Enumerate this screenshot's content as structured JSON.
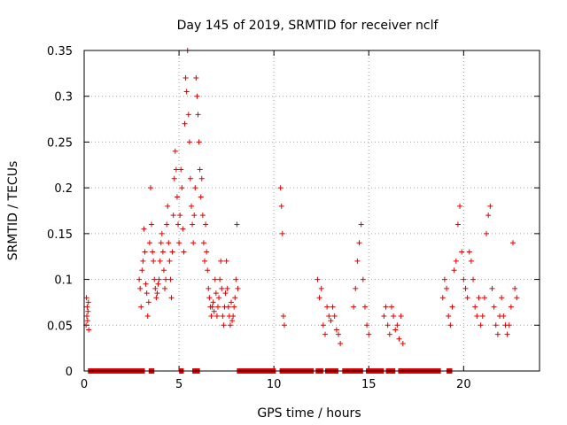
{
  "chart_data": {
    "type": "scatter",
    "title": "Day 145 of 2019, SRMTID for receiver nclf",
    "xlabel": "GPS time / hours",
    "ylabel": "SRMTID / TECUs",
    "xlim": [
      0,
      24
    ],
    "ylim": [
      0,
      0.35
    ],
    "xticks": [
      0,
      5,
      10,
      15,
      20
    ],
    "xtick_labels": [
      "0",
      "5",
      "10",
      "15",
      "20"
    ],
    "yticks": [
      0,
      0.05,
      0.1,
      0.15,
      0.2,
      0.25,
      0.3,
      0.35
    ],
    "ytick_labels": [
      "0",
      "0.05",
      "0.1",
      "0.15",
      "0.2",
      "0.25",
      "0.3",
      "0.35"
    ],
    "grid": true,
    "marker": "plus",
    "color": "#e00000",
    "series": [
      {
        "name": "SRMTID",
        "x": [
          0.1,
          0.12,
          0.14,
          0.16,
          0.18,
          0.2,
          0.22,
          0.24,
          2.9,
          2.95,
          3.0,
          3.05,
          3.1,
          3.15,
          3.2,
          3.25,
          3.3,
          3.35,
          3.4,
          3.45,
          3.5,
          3.55,
          3.6,
          3.65,
          3.7,
          3.75,
          3.8,
          3.85,
          3.9,
          3.95,
          4.0,
          4.05,
          4.1,
          4.15,
          4.2,
          4.25,
          4.3,
          4.35,
          4.4,
          4.45,
          4.5,
          4.55,
          4.6,
          4.65,
          4.7,
          4.75,
          4.8,
          4.85,
          4.9,
          4.95,
          5.0,
          5.05,
          5.1,
          5.15,
          5.2,
          5.25,
          5.3,
          5.35,
          5.4,
          5.45,
          5.5,
          5.55,
          5.6,
          5.65,
          5.7,
          5.75,
          5.8,
          5.85,
          5.9,
          5.95,
          6.0,
          6.05,
          6.1,
          6.15,
          6.2,
          6.25,
          6.3,
          6.35,
          6.4,
          6.45,
          6.5,
          6.55,
          6.6,
          6.65,
          6.7,
          6.75,
          6.8,
          6.85,
          6.9,
          6.95,
          7.0,
          7.05,
          7.1,
          7.15,
          7.2,
          7.25,
          7.3,
          7.35,
          7.4,
          7.45,
          7.5,
          7.55,
          7.6,
          7.65,
          7.7,
          7.75,
          7.8,
          7.85,
          7.9,
          7.95,
          8.0,
          8.05,
          8.1,
          10.35,
          10.4,
          10.45,
          10.5,
          10.55,
          12.3,
          12.4,
          12.5,
          12.6,
          12.7,
          12.8,
          12.9,
          13.0,
          13.1,
          13.2,
          13.3,
          13.4,
          13.5,
          14.2,
          14.3,
          14.4,
          14.5,
          14.6,
          14.7,
          14.8,
          14.9,
          15.0,
          15.8,
          15.9,
          16.0,
          16.1,
          16.2,
          16.3,
          16.4,
          16.5,
          16.6,
          16.7,
          16.8,
          18.9,
          19.0,
          19.1,
          19.2,
          19.3,
          19.4,
          19.5,
          19.6,
          19.7,
          19.8,
          19.9,
          20.0,
          20.1,
          20.2,
          20.3,
          20.4,
          20.5,
          20.6,
          20.7,
          20.8,
          20.9,
          21.0,
          21.1,
          21.2,
          21.3,
          21.4,
          21.5,
          21.6,
          21.7,
          21.8,
          21.9,
          22.0,
          22.1,
          22.2,
          22.3,
          22.4,
          22.5,
          22.6,
          22.7,
          22.8
        ],
        "y": [
          0.05,
          0.08,
          0.06,
          0.07,
          0.055,
          0.065,
          0.075,
          0.045,
          0.1,
          0.09,
          0.07,
          0.11,
          0.12,
          0.155,
          0.13,
          0.095,
          0.085,
          0.06,
          0.075,
          0.14,
          0.2,
          0.16,
          0.13,
          0.12,
          0.1,
          0.09,
          0.08,
          0.085,
          0.095,
          0.1,
          0.12,
          0.14,
          0.15,
          0.13,
          0.11,
          0.09,
          0.1,
          0.16,
          0.18,
          0.14,
          0.12,
          0.1,
          0.08,
          0.13,
          0.17,
          0.21,
          0.24,
          0.22,
          0.19,
          0.16,
          0.14,
          0.17,
          0.22,
          0.2,
          0.155,
          0.13,
          0.27,
          0.32,
          0.305,
          0.35,
          0.28,
          0.25,
          0.21,
          0.18,
          0.16,
          0.14,
          0.17,
          0.2,
          0.32,
          0.3,
          0.28,
          0.25,
          0.22,
          0.19,
          0.21,
          0.17,
          0.14,
          0.12,
          0.16,
          0.13,
          0.11,
          0.09,
          0.08,
          0.07,
          0.06,
          0.07,
          0.075,
          0.065,
          0.1,
          0.085,
          0.06,
          0.07,
          0.08,
          0.1,
          0.12,
          0.09,
          0.06,
          0.05,
          0.07,
          0.085,
          0.12,
          0.09,
          0.07,
          0.06,
          0.05,
          0.075,
          0.055,
          0.06,
          0.07,
          0.08,
          0.1,
          0.16,
          0.09,
          0.2,
          0.18,
          0.15,
          0.06,
          0.05,
          0.1,
          0.08,
          0.09,
          0.05,
          0.04,
          0.07,
          0.06,
          0.055,
          0.07,
          0.06,
          0.045,
          0.04,
          0.03,
          0.07,
          0.09,
          0.12,
          0.14,
          0.16,
          0.1,
          0.07,
          0.05,
          0.04,
          0.06,
          0.07,
          0.05,
          0.04,
          0.07,
          0.06,
          0.045,
          0.05,
          0.035,
          0.06,
          0.03,
          0.08,
          0.1,
          0.09,
          0.06,
          0.05,
          0.07,
          0.11,
          0.12,
          0.16,
          0.18,
          0.13,
          0.1,
          0.09,
          0.08,
          0.13,
          0.12,
          0.1,
          0.07,
          0.06,
          0.08,
          0.05,
          0.06,
          0.08,
          0.15,
          0.17,
          0.18,
          0.09,
          0.07,
          0.05,
          0.04,
          0.06,
          0.08,
          0.06,
          0.05,
          0.04,
          0.05,
          0.07,
          0.14,
          0.09,
          0.08
        ]
      }
    ],
    "availability_segments": [
      [
        0.2,
        3.2
      ],
      [
        3.4,
        3.7
      ],
      [
        5.0,
        5.25
      ],
      [
        5.7,
        6.1
      ],
      [
        8.05,
        10.1
      ],
      [
        10.3,
        12.1
      ],
      [
        12.2,
        12.6
      ],
      [
        12.7,
        13.4
      ],
      [
        13.6,
        14.7
      ],
      [
        14.85,
        15.8
      ],
      [
        15.9,
        16.4
      ],
      [
        16.55,
        18.8
      ],
      [
        19.1,
        19.4
      ]
    ]
  }
}
